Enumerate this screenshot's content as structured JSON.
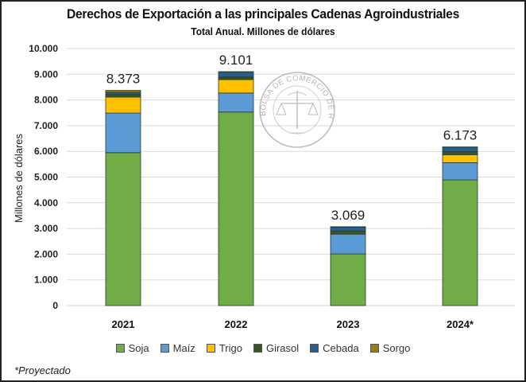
{
  "chart_data": {
    "type": "bar",
    "stacked": true,
    "title": "Derechos de Exportación a las principales Cadenas Agroindustriales",
    "subtitle": "Total Anual. Millones de dólares",
    "xlabel": "",
    "ylabel": "Millones de dólares",
    "ylim": [
      0,
      10000
    ],
    "yticks": [
      0,
      1000,
      2000,
      3000,
      4000,
      5000,
      6000,
      7000,
      8000,
      9000,
      10000
    ],
    "ytick_labels": [
      "0",
      "1.000",
      "2.000",
      "3.000",
      "4.000",
      "5.000",
      "6.000",
      "7.000",
      "8.000",
      "9.000",
      "10.000"
    ],
    "grid": true,
    "categories": [
      "2021",
      "2022",
      "2023",
      "2024*"
    ],
    "series": [
      {
        "name": "Soja",
        "color": "#70AD47",
        "values": [
          5950,
          7530,
          2010,
          4890
        ]
      },
      {
        "name": "Maíz",
        "color": "#5B9BD5",
        "values": [
          1540,
          740,
          770,
          670
        ]
      },
      {
        "name": "Trigo",
        "color": "#FFC000",
        "values": [
          620,
          520,
          0,
          310
        ]
      },
      {
        "name": "Girasol",
        "color": "#375623",
        "values": [
          100,
          100,
          120,
          120
        ]
      },
      {
        "name": "Cebada",
        "color": "#255E91",
        "values": [
          90,
          200,
          150,
          170
        ]
      },
      {
        "name": "Sorgo",
        "color": "#9E7C0C",
        "values": [
          73,
          11,
          19,
          13
        ]
      }
    ],
    "totals": [
      8373,
      9101,
      3069,
      6173
    ],
    "total_labels": [
      "8.373",
      "9.101",
      "3.069",
      "6.173"
    ],
    "legend_position": "bottom",
    "footnote": "*Proyectado"
  },
  "watermark": {
    "text": "BOLSA DE COMERCIO DE ROSARIO"
  }
}
